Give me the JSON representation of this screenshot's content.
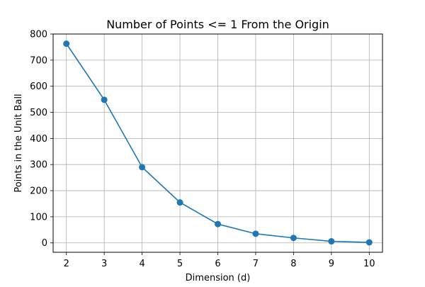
{
  "chart_data": {
    "type": "line",
    "title": "Number of Points <= 1 From the Origin",
    "xlabel": "Dimension (d)",
    "ylabel": "Points in the Unit Ball",
    "x": [
      2,
      3,
      4,
      5,
      6,
      7,
      8,
      9,
      10
    ],
    "series": [
      {
        "values": [
          763,
          548,
          290,
          155,
          72,
          35,
          19,
          6,
          2
        ]
      }
    ],
    "xlim": [
      1.65,
      10.35
    ],
    "ylim": [
      -36,
      800
    ],
    "xticks": [
      2,
      3,
      4,
      5,
      6,
      7,
      8,
      9,
      10
    ],
    "yticks": [
      0,
      100,
      200,
      300,
      400,
      500,
      600,
      700,
      800
    ],
    "grid": true,
    "colors": {
      "line": "#1f77b4",
      "grid": "#b0b0b0",
      "axes": "#000000"
    }
  }
}
